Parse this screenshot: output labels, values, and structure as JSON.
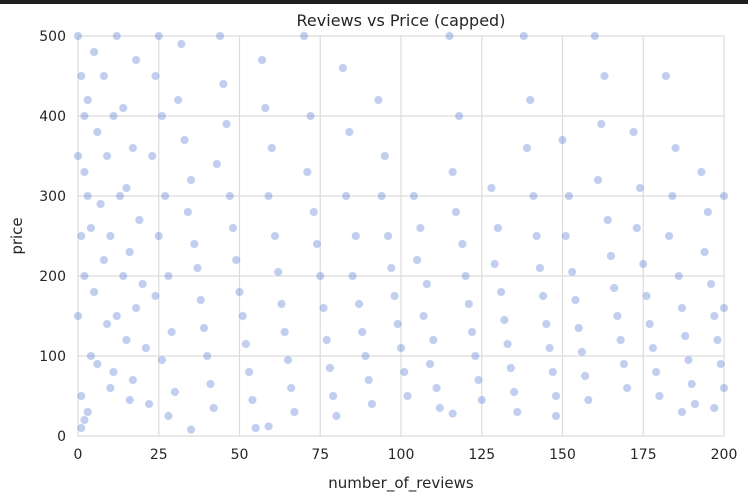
{
  "chart_data": {
    "type": "scatter",
    "title": "Reviews vs Price (capped)",
    "xlabel": "number_of_reviews",
    "ylabel": "price",
    "xlim": [
      0,
      200
    ],
    "ylim": [
      0,
      500
    ],
    "x_ticks": [
      "0",
      "25",
      "50",
      "75",
      "100",
      "125",
      "150",
      "175",
      "200"
    ],
    "y_ticks": [
      "0",
      "100",
      "200",
      "300",
      "400",
      "500"
    ],
    "grid": true,
    "legend": "none",
    "point_color": "#4c72d0",
    "point_opacity": 0.35,
    "points": [
      [
        0,
        500
      ],
      [
        1,
        450
      ],
      [
        2,
        400
      ],
      [
        0,
        350
      ],
      [
        3,
        300
      ],
      [
        1,
        250
      ],
      [
        2,
        200
      ],
      [
        0,
        150
      ],
      [
        4,
        100
      ],
      [
        1,
        50
      ],
      [
        5,
        480
      ],
      [
        3,
        420
      ],
      [
        6,
        380
      ],
      [
        2,
        330
      ],
      [
        7,
        290
      ],
      [
        4,
        260
      ],
      [
        8,
        220
      ],
      [
        5,
        180
      ],
      [
        9,
        140
      ],
      [
        6,
        90
      ],
      [
        10,
        60
      ],
      [
        3,
        30
      ],
      [
        12,
        500
      ],
      [
        8,
        450
      ],
      [
        11,
        400
      ],
      [
        9,
        350
      ],
      [
        13,
        300
      ],
      [
        10,
        250
      ],
      [
        14,
        200
      ],
      [
        12,
        150
      ],
      [
        15,
        120
      ],
      [
        11,
        80
      ],
      [
        16,
        45
      ],
      [
        2,
        20
      ],
      [
        18,
        470
      ],
      [
        14,
        410
      ],
      [
        17,
        360
      ],
      [
        15,
        310
      ],
      [
        19,
        270
      ],
      [
        16,
        230
      ],
      [
        20,
        190
      ],
      [
        18,
        160
      ],
      [
        21,
        110
      ],
      [
        17,
        70
      ],
      [
        22,
        40
      ],
      [
        1,
        10
      ],
      [
        25,
        500
      ],
      [
        24,
        450
      ],
      [
        26,
        400
      ],
      [
        23,
        350
      ],
      [
        27,
        300
      ],
      [
        25,
        250
      ],
      [
        28,
        200
      ],
      [
        24,
        175
      ],
      [
        29,
        130
      ],
      [
        26,
        95
      ],
      [
        30,
        55
      ],
      [
        28,
        25
      ],
      [
        32,
        490
      ],
      [
        31,
        420
      ],
      [
        33,
        370
      ],
      [
        35,
        320
      ],
      [
        34,
        280
      ],
      [
        36,
        240
      ],
      [
        37,
        210
      ],
      [
        38,
        170
      ],
      [
        39,
        135
      ],
      [
        40,
        100
      ],
      [
        41,
        65
      ],
      [
        42,
        35
      ],
      [
        44,
        500
      ],
      [
        45,
        440
      ],
      [
        46,
        390
      ],
      [
        43,
        340
      ],
      [
        47,
        300
      ],
      [
        48,
        260
      ],
      [
        49,
        220
      ],
      [
        50,
        180
      ],
      [
        51,
        150
      ],
      [
        52,
        115
      ],
      [
        53,
        80
      ],
      [
        54,
        45
      ],
      [
        55,
        10
      ],
      [
        57,
        470
      ],
      [
        58,
        410
      ],
      [
        60,
        360
      ],
      [
        59,
        300
      ],
      [
        61,
        250
      ],
      [
        62,
        205
      ],
      [
        63,
        165
      ],
      [
        64,
        130
      ],
      [
        65,
        95
      ],
      [
        66,
        60
      ],
      [
        67,
        30
      ],
      [
        70,
        500
      ],
      [
        72,
        400
      ],
      [
        71,
        330
      ],
      [
        73,
        280
      ],
      [
        74,
        240
      ],
      [
        75,
        200
      ],
      [
        76,
        160
      ],
      [
        77,
        120
      ],
      [
        78,
        85
      ],
      [
        79,
        50
      ],
      [
        80,
        25
      ],
      [
        82,
        460
      ],
      [
        84,
        380
      ],
      [
        83,
        300
      ],
      [
        86,
        250
      ],
      [
        85,
        200
      ],
      [
        87,
        165
      ],
      [
        88,
        130
      ],
      [
        89,
        100
      ],
      [
        90,
        70
      ],
      [
        91,
        40
      ],
      [
        93,
        420
      ],
      [
        95,
        350
      ],
      [
        94,
        300
      ],
      [
        96,
        250
      ],
      [
        97,
        210
      ],
      [
        98,
        175
      ],
      [
        99,
        140
      ],
      [
        100,
        110
      ],
      [
        101,
        80
      ],
      [
        102,
        50
      ],
      [
        104,
        300
      ],
      [
        106,
        260
      ],
      [
        105,
        220
      ],
      [
        108,
        190
      ],
      [
        107,
        150
      ],
      [
        110,
        120
      ],
      [
        109,
        90
      ],
      [
        111,
        60
      ],
      [
        112,
        35
      ],
      [
        115,
        500
      ],
      [
        118,
        400
      ],
      [
        116,
        330
      ],
      [
        117,
        280
      ],
      [
        119,
        240
      ],
      [
        120,
        200
      ],
      [
        121,
        165
      ],
      [
        122,
        130
      ],
      [
        123,
        100
      ],
      [
        124,
        70
      ],
      [
        125,
        45
      ],
      [
        128,
        310
      ],
      [
        130,
        260
      ],
      [
        129,
        215
      ],
      [
        131,
        180
      ],
      [
        132,
        145
      ],
      [
        133,
        115
      ],
      [
        134,
        85
      ],
      [
        135,
        55
      ],
      [
        136,
        30
      ],
      [
        138,
        500
      ],
      [
        140,
        420
      ],
      [
        139,
        360
      ],
      [
        141,
        300
      ],
      [
        142,
        250
      ],
      [
        143,
        210
      ],
      [
        144,
        175
      ],
      [
        145,
        140
      ],
      [
        146,
        110
      ],
      [
        147,
        80
      ],
      [
        148,
        50
      ],
      [
        150,
        370
      ],
      [
        152,
        300
      ],
      [
        151,
        250
      ],
      [
        153,
        205
      ],
      [
        154,
        170
      ],
      [
        155,
        135
      ],
      [
        156,
        105
      ],
      [
        157,
        75
      ],
      [
        158,
        45
      ],
      [
        160,
        500
      ],
      [
        163,
        450
      ],
      [
        162,
        390
      ],
      [
        161,
        320
      ],
      [
        164,
        270
      ],
      [
        165,
        225
      ],
      [
        166,
        185
      ],
      [
        167,
        150
      ],
      [
        168,
        120
      ],
      [
        169,
        90
      ],
      [
        170,
        60
      ],
      [
        172,
        380
      ],
      [
        174,
        310
      ],
      [
        173,
        260
      ],
      [
        175,
        215
      ],
      [
        176,
        175
      ],
      [
        177,
        140
      ],
      [
        178,
        110
      ],
      [
        179,
        80
      ],
      [
        180,
        50
      ],
      [
        182,
        450
      ],
      [
        185,
        360
      ],
      [
        184,
        300
      ],
      [
        183,
        250
      ],
      [
        186,
        200
      ],
      [
        187,
        160
      ],
      [
        188,
        125
      ],
      [
        189,
        95
      ],
      [
        190,
        65
      ],
      [
        191,
        40
      ],
      [
        193,
        330
      ],
      [
        195,
        280
      ],
      [
        194,
        230
      ],
      [
        196,
        190
      ],
      [
        197,
        150
      ],
      [
        198,
        120
      ],
      [
        199,
        90
      ],
      [
        200,
        60
      ],
      [
        200,
        300
      ],
      [
        200,
        160
      ],
      [
        197,
        35
      ],
      [
        187,
        30
      ],
      [
        148,
        25
      ],
      [
        116,
        28
      ],
      [
        59,
        12
      ],
      [
        35,
        8
      ]
    ]
  }
}
